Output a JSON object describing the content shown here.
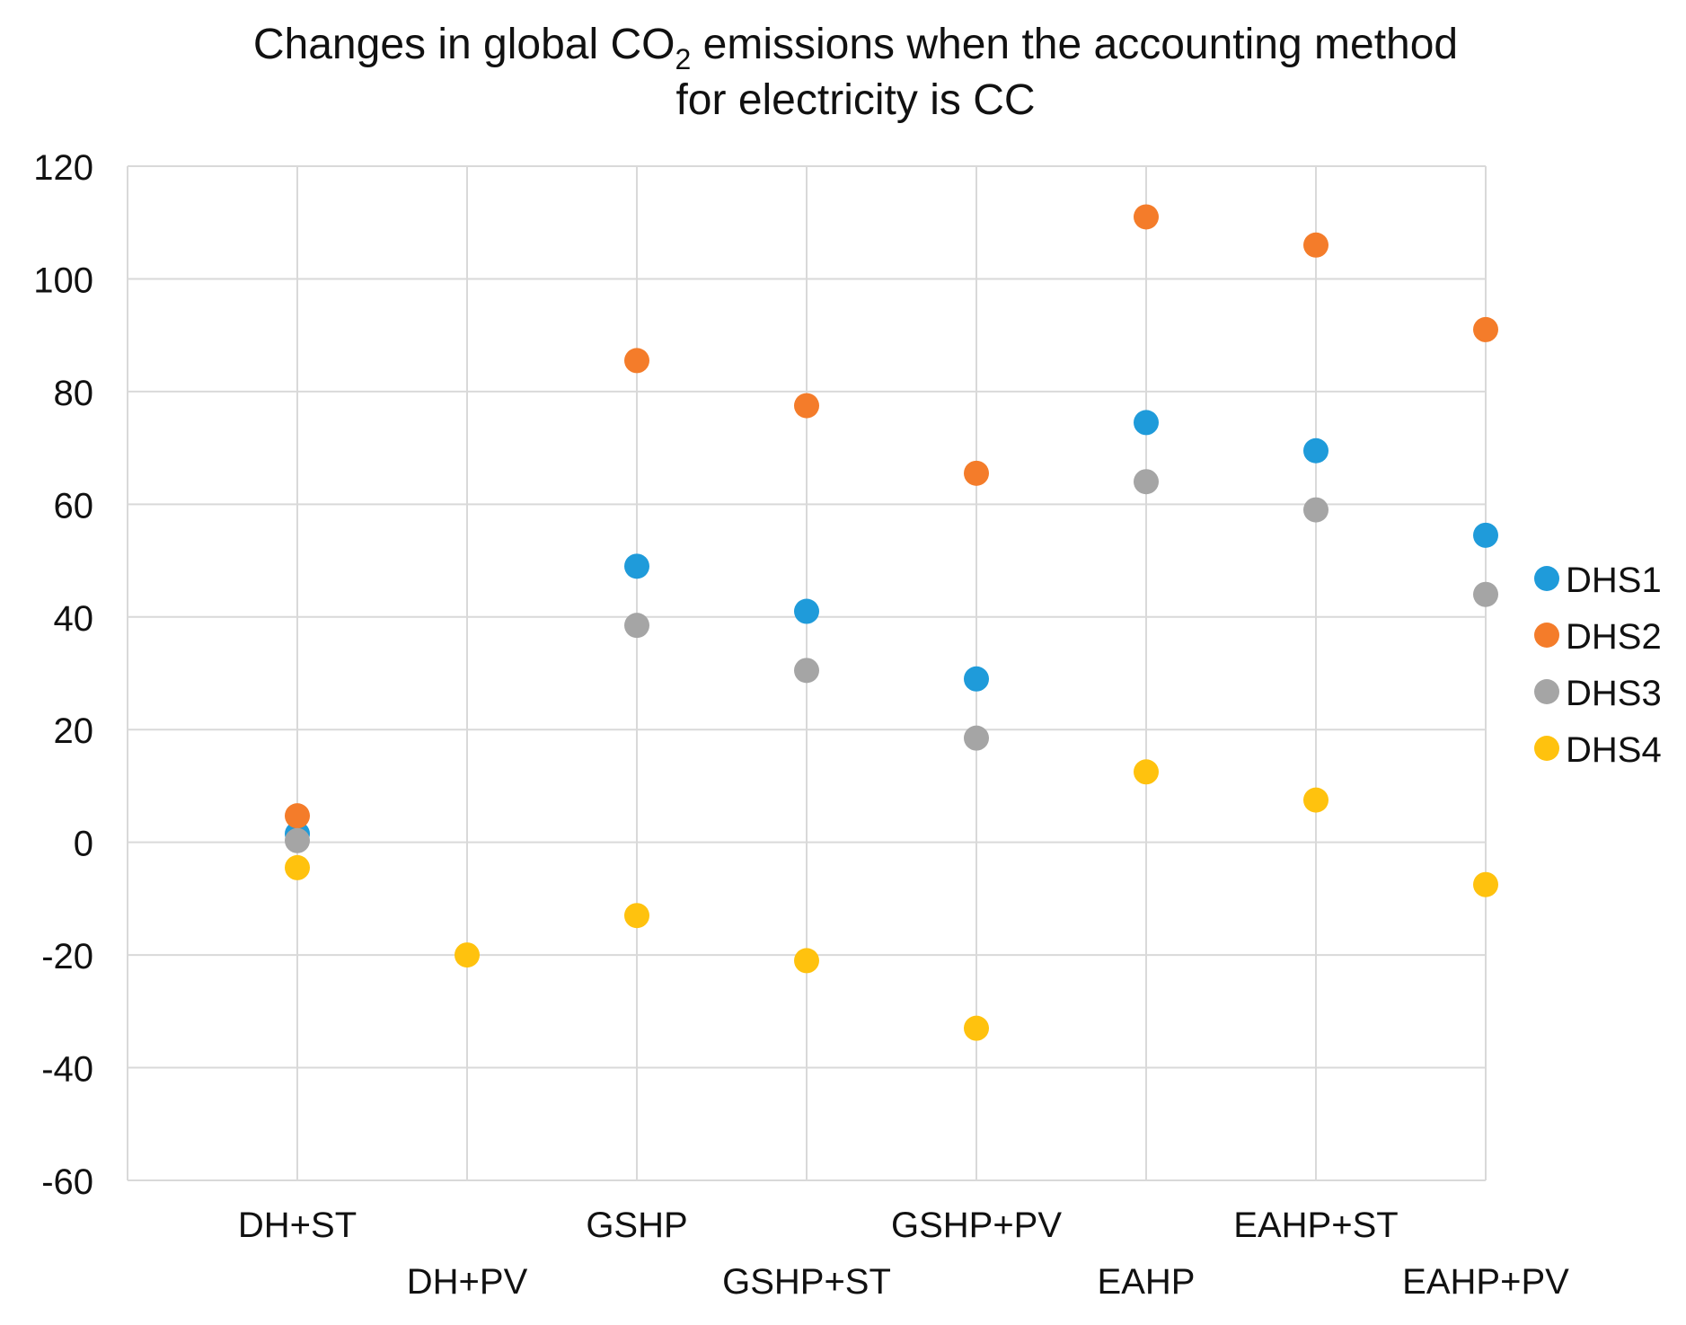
{
  "chart_data": {
    "type": "scatter",
    "title_line1_pre": "Changes in global CO",
    "title_line1_sub": "2",
    "title_line1_post": " emissions when the accounting method",
    "title_line2": "for electricity is CC",
    "xlabel": "",
    "ylabel": "",
    "ylim": [
      -60,
      120
    ],
    "y_ticks": [
      120,
      100,
      80,
      60,
      40,
      20,
      0,
      -20,
      -40,
      -60
    ],
    "y_tick_labels": [
      "120",
      "100",
      "80",
      "60",
      "40",
      "20",
      "0",
      "-20",
      "-40",
      "-60"
    ],
    "categories": [
      "DH+ST",
      "DH+PV",
      "GSHP",
      "GSHP+ST",
      "GSHP+PV",
      "EAHP",
      "EAHP+ST",
      "EAHP+PV"
    ],
    "grid": true,
    "legend_position": "right",
    "series": [
      {
        "name": "DHS1",
        "color": "#1F9BDA",
        "values": [
          1.5,
          null,
          49,
          41,
          29,
          74.5,
          69.5,
          54.5
        ]
      },
      {
        "name": "DHS2",
        "color": "#F47C2A",
        "values": [
          4.7,
          null,
          85.5,
          77.5,
          65.5,
          111,
          106,
          91
        ]
      },
      {
        "name": "DHS3",
        "color": "#A5A5A5",
        "values": [
          0.3,
          null,
          38.5,
          30.5,
          18.5,
          64,
          59,
          44
        ]
      },
      {
        "name": "DHS4",
        "color": "#FFC20E",
        "values": [
          -4.5,
          -20,
          -13,
          -21,
          -33,
          12.5,
          7.5,
          -7.5
        ]
      }
    ]
  }
}
